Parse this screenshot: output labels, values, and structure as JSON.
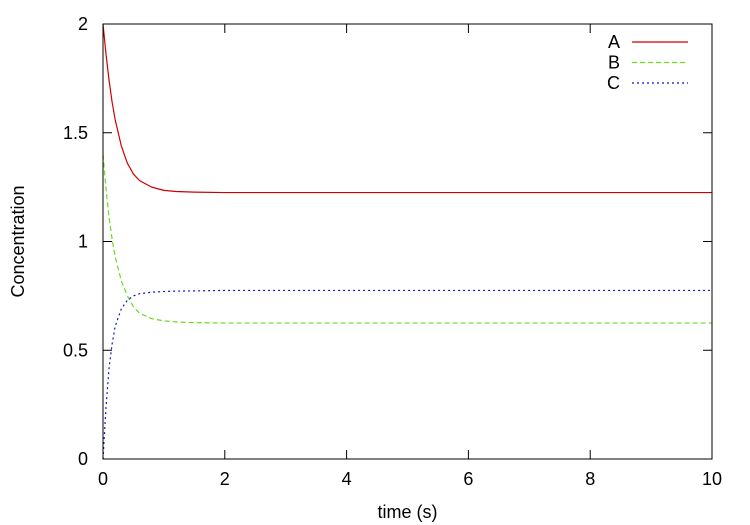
{
  "chart_data": {
    "type": "line",
    "title": "",
    "xlabel": "time (s)",
    "ylabel": "Concentration",
    "xlim": [
      0,
      10
    ],
    "ylim": [
      0,
      2
    ],
    "x_ticks": [
      0,
      2,
      4,
      6,
      8,
      10
    ],
    "x_tick_labels": [
      "0",
      "2",
      "4",
      "6",
      "8",
      "10"
    ],
    "y_ticks": [
      0,
      0.5,
      1,
      1.5,
      2
    ],
    "y_tick_labels": [
      "0",
      "0.5",
      "1",
      "1.5",
      "2"
    ],
    "grid": false,
    "legend_position": "top-right",
    "x": [
      0,
      0.05,
      0.1,
      0.15,
      0.2,
      0.3,
      0.4,
      0.5,
      0.6,
      0.8,
      1.0,
      1.2,
      1.5,
      2,
      3,
      4,
      5,
      6,
      7,
      8,
      9,
      10
    ],
    "series": [
      {
        "name": "A",
        "color": "#cc0000",
        "dash": "solid",
        "values": [
          2.0,
          1.86,
          1.74,
          1.64,
          1.56,
          1.44,
          1.36,
          1.31,
          1.28,
          1.25,
          1.235,
          1.23,
          1.227,
          1.225,
          1.225,
          1.225,
          1.225,
          1.225,
          1.225,
          1.225,
          1.225,
          1.225
        ]
      },
      {
        "name": "B",
        "color": "#66dd22",
        "dash": "dashed",
        "values": [
          1.4,
          1.24,
          1.11,
          1.01,
          0.93,
          0.82,
          0.75,
          0.7,
          0.67,
          0.645,
          0.635,
          0.63,
          0.627,
          0.625,
          0.625,
          0.625,
          0.625,
          0.625,
          0.625,
          0.625,
          0.625,
          0.625
        ]
      },
      {
        "name": "C",
        "color": "#1111cc",
        "dash": "dotted",
        "values": [
          0.0,
          0.24,
          0.42,
          0.53,
          0.61,
          0.69,
          0.73,
          0.75,
          0.76,
          0.767,
          0.77,
          0.772,
          0.773,
          0.775,
          0.775,
          0.775,
          0.775,
          0.775,
          0.775,
          0.775,
          0.775,
          0.775
        ]
      }
    ]
  }
}
